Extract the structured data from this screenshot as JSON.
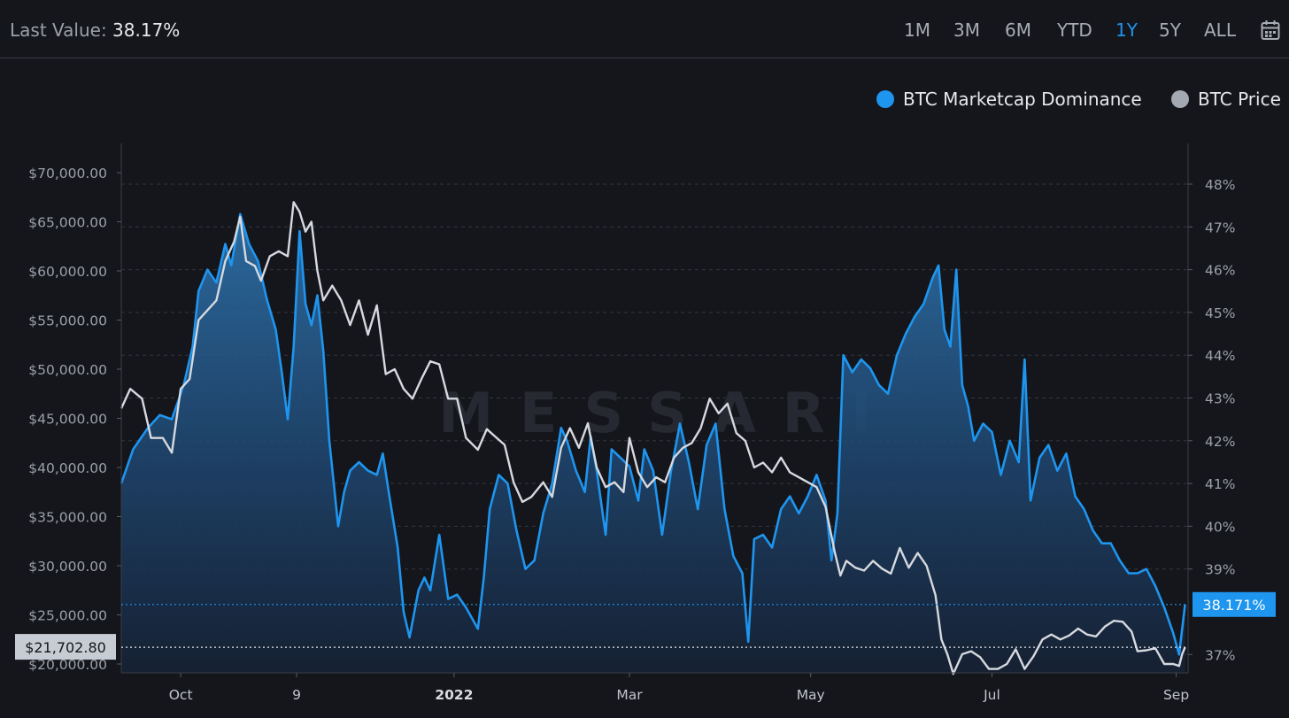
{
  "header": {
    "last_value_label": "Last Value:",
    "last_value": "38.17%",
    "ranges": [
      "1M",
      "3M",
      "6M",
      "YTD",
      "1Y",
      "5Y",
      "ALL"
    ],
    "active_range": "1Y",
    "calendar_icon": "calendar-icon"
  },
  "colors": {
    "dominance": "#1e95ef",
    "price": "#d6d9df",
    "accent": "#1e95ef"
  },
  "watermark": "MESSARI",
  "chart_data": {
    "type": "line",
    "x_ticks": [
      "Oct",
      "9",
      "2022",
      "Mar",
      "May",
      "Jul",
      "Sep"
    ],
    "x_tick_dates": [
      "2021-10-01",
      "2021-11-09",
      "2022-01-01",
      "2022-03-01",
      "2022-05-01",
      "2022-07-01",
      "2022-09-01"
    ],
    "x_range": [
      "2021-09-11",
      "2022-09-05"
    ],
    "left_axis": {
      "ticks": [
        "$70,000.00",
        "$65,000.00",
        "$60,000.00",
        "$55,000.00",
        "$50,000.00",
        "$45,000.00",
        "$40,000.00",
        "$35,000.00",
        "$30,000.00",
        "$25,000.00",
        "$20,000.00"
      ],
      "tick_values": [
        70000,
        65000,
        60000,
        55000,
        50000,
        45000,
        40000,
        35000,
        30000,
        25000,
        20000
      ],
      "range": [
        19000,
        71000
      ]
    },
    "right_axis": {
      "ticks": [
        "48%",
        "47%",
        "46%",
        "45%",
        "44%",
        "43%",
        "42%",
        "41%",
        "40%",
        "39%",
        "37%"
      ],
      "tick_values": [
        48,
        47,
        46,
        45,
        44,
        43,
        42,
        41,
        40,
        39,
        37
      ],
      "range": [
        36.5,
        49
      ]
    },
    "price_marker": "$21,702.80",
    "dominance_marker": "38.171%",
    "grid": true,
    "legend_position": "top-right",
    "series": [
      {
        "name": "BTC Marketcap Dominance",
        "axis": "right",
        "area": true,
        "points": [
          [
            "2021-09-11",
            41.0
          ],
          [
            "2021-09-15",
            41.8
          ],
          [
            "2021-09-20",
            42.3
          ],
          [
            "2021-09-24",
            42.6
          ],
          [
            "2021-09-28",
            42.5
          ],
          [
            "2021-10-02",
            43.3
          ],
          [
            "2021-10-05",
            44.2
          ],
          [
            "2021-10-07",
            45.5
          ],
          [
            "2021-10-10",
            46.0
          ],
          [
            "2021-10-13",
            45.7
          ],
          [
            "2021-10-16",
            46.6
          ],
          [
            "2021-10-18",
            46.1
          ],
          [
            "2021-10-21",
            47.3
          ],
          [
            "2021-10-24",
            46.6
          ],
          [
            "2021-10-27",
            46.2
          ],
          [
            "2021-10-30",
            45.3
          ],
          [
            "2021-11-02",
            44.6
          ],
          [
            "2021-11-04",
            43.6
          ],
          [
            "2021-11-06",
            42.5
          ],
          [
            "2021-11-08",
            44.2
          ],
          [
            "2021-11-10",
            46.9
          ],
          [
            "2021-11-12",
            45.2
          ],
          [
            "2021-11-14",
            44.7
          ],
          [
            "2021-11-16",
            45.4
          ],
          [
            "2021-11-18",
            44.1
          ],
          [
            "2021-11-20",
            42.0
          ],
          [
            "2021-11-23",
            40.0
          ],
          [
            "2021-11-25",
            40.8
          ],
          [
            "2021-11-27",
            41.3
          ],
          [
            "2021-11-30",
            41.5
          ],
          [
            "2021-12-03",
            41.3
          ],
          [
            "2021-12-06",
            41.2
          ],
          [
            "2021-12-08",
            41.7
          ],
          [
            "2021-12-10",
            40.8
          ],
          [
            "2021-12-13",
            39.5
          ],
          [
            "2021-12-15",
            38.0
          ],
          [
            "2021-12-17",
            37.4
          ],
          [
            "2021-12-20",
            38.5
          ],
          [
            "2021-12-22",
            38.8
          ],
          [
            "2021-12-24",
            38.5
          ],
          [
            "2021-12-27",
            39.8
          ],
          [
            "2021-12-30",
            38.3
          ],
          [
            "2022-01-02",
            38.4
          ],
          [
            "2022-01-05",
            38.1
          ],
          [
            "2022-01-09",
            37.6
          ],
          [
            "2022-01-11",
            38.8
          ],
          [
            "2022-01-13",
            40.4
          ],
          [
            "2022-01-16",
            41.2
          ],
          [
            "2022-01-19",
            41.0
          ],
          [
            "2022-01-22",
            39.9
          ],
          [
            "2022-01-25",
            39.0
          ],
          [
            "2022-01-28",
            39.2
          ],
          [
            "2022-01-31",
            40.3
          ],
          [
            "2022-02-03",
            41.0
          ],
          [
            "2022-02-06",
            42.3
          ],
          [
            "2022-02-08",
            42.0
          ],
          [
            "2022-02-11",
            41.3
          ],
          [
            "2022-02-14",
            40.8
          ],
          [
            "2022-02-16",
            42.1
          ],
          [
            "2022-02-18",
            41.3
          ],
          [
            "2022-02-21",
            39.8
          ],
          [
            "2022-02-23",
            41.8
          ],
          [
            "2022-02-26",
            41.6
          ],
          [
            "2022-03-01",
            41.4
          ],
          [
            "2022-03-04",
            40.6
          ],
          [
            "2022-03-06",
            41.8
          ],
          [
            "2022-03-09",
            41.3
          ],
          [
            "2022-03-12",
            39.8
          ],
          [
            "2022-03-15",
            41.3
          ],
          [
            "2022-03-18",
            42.4
          ],
          [
            "2022-03-21",
            41.5
          ],
          [
            "2022-03-24",
            40.4
          ],
          [
            "2022-03-27",
            41.9
          ],
          [
            "2022-03-30",
            42.4
          ],
          [
            "2022-04-02",
            40.4
          ],
          [
            "2022-04-05",
            39.3
          ],
          [
            "2022-04-08",
            38.9
          ],
          [
            "2022-04-10",
            37.3
          ],
          [
            "2022-04-12",
            39.7
          ],
          [
            "2022-04-15",
            39.8
          ],
          [
            "2022-04-18",
            39.5
          ],
          [
            "2022-04-21",
            40.4
          ],
          [
            "2022-04-24",
            40.7
          ],
          [
            "2022-04-27",
            40.3
          ],
          [
            "2022-04-30",
            40.7
          ],
          [
            "2022-05-03",
            41.2
          ],
          [
            "2022-05-06",
            40.6
          ],
          [
            "2022-05-08",
            39.2
          ],
          [
            "2022-05-10",
            40.3
          ],
          [
            "2022-05-12",
            44.0
          ],
          [
            "2022-05-15",
            43.6
          ],
          [
            "2022-05-18",
            43.9
          ],
          [
            "2022-05-21",
            43.7
          ],
          [
            "2022-05-24",
            43.3
          ],
          [
            "2022-05-27",
            43.1
          ],
          [
            "2022-05-30",
            44.0
          ],
          [
            "2022-06-02",
            44.5
          ],
          [
            "2022-06-05",
            44.9
          ],
          [
            "2022-06-08",
            45.2
          ],
          [
            "2022-06-11",
            45.8
          ],
          [
            "2022-06-13",
            46.1
          ],
          [
            "2022-06-15",
            44.6
          ],
          [
            "2022-06-17",
            44.2
          ],
          [
            "2022-06-19",
            46.0
          ],
          [
            "2022-06-21",
            43.3
          ],
          [
            "2022-06-23",
            42.8
          ],
          [
            "2022-06-25",
            42.0
          ],
          [
            "2022-06-28",
            42.4
          ],
          [
            "2022-07-01",
            42.2
          ],
          [
            "2022-07-04",
            41.2
          ],
          [
            "2022-07-07",
            42.0
          ],
          [
            "2022-07-10",
            41.5
          ],
          [
            "2022-07-12",
            43.9
          ],
          [
            "2022-07-14",
            40.6
          ],
          [
            "2022-07-17",
            41.6
          ],
          [
            "2022-07-20",
            41.9
          ],
          [
            "2022-07-23",
            41.3
          ],
          [
            "2022-07-26",
            41.7
          ],
          [
            "2022-07-29",
            40.7
          ],
          [
            "2022-08-01",
            40.4
          ],
          [
            "2022-08-04",
            39.9
          ],
          [
            "2022-08-07",
            39.6
          ],
          [
            "2022-08-10",
            39.6
          ],
          [
            "2022-08-13",
            39.2
          ],
          [
            "2022-08-16",
            38.9
          ],
          [
            "2022-08-19",
            38.9
          ],
          [
            "2022-08-22",
            39.0
          ],
          [
            "2022-08-25",
            38.6
          ],
          [
            "2022-08-28",
            38.1
          ],
          [
            "2022-08-31",
            37.5
          ],
          [
            "2022-09-02",
            37.0
          ],
          [
            "2022-09-04",
            38.17
          ]
        ]
      },
      {
        "name": "BTC Price",
        "axis": "left",
        "area": false,
        "points": [
          [
            "2021-09-11",
            46000
          ],
          [
            "2021-09-14",
            48000
          ],
          [
            "2021-09-18",
            47000
          ],
          [
            "2021-09-21",
            43000
          ],
          [
            "2021-09-25",
            43000
          ],
          [
            "2021-09-28",
            41500
          ],
          [
            "2021-10-01",
            48000
          ],
          [
            "2021-10-04",
            49000
          ],
          [
            "2021-10-07",
            55000
          ],
          [
            "2021-10-10",
            56000
          ],
          [
            "2021-10-13",
            57000
          ],
          [
            "2021-10-16",
            61000
          ],
          [
            "2021-10-19",
            63000
          ],
          [
            "2021-10-21",
            65500
          ],
          [
            "2021-10-23",
            61000
          ],
          [
            "2021-10-26",
            60500
          ],
          [
            "2021-10-28",
            59000
          ],
          [
            "2021-10-31",
            61500
          ],
          [
            "2021-11-03",
            62000
          ],
          [
            "2021-11-06",
            61500
          ],
          [
            "2021-11-08",
            67000
          ],
          [
            "2021-11-10",
            66000
          ],
          [
            "2021-11-12",
            64000
          ],
          [
            "2021-11-14",
            65000
          ],
          [
            "2021-11-16",
            60000
          ],
          [
            "2021-11-18",
            57000
          ],
          [
            "2021-11-21",
            58500
          ],
          [
            "2021-11-24",
            57000
          ],
          [
            "2021-11-27",
            54500
          ],
          [
            "2021-11-30",
            57000
          ],
          [
            "2021-12-03",
            53500
          ],
          [
            "2021-12-06",
            56500
          ],
          [
            "2021-12-09",
            49500
          ],
          [
            "2021-12-12",
            50000
          ],
          [
            "2021-12-15",
            48000
          ],
          [
            "2021-12-18",
            47000
          ],
          [
            "2021-12-21",
            49000
          ],
          [
            "2021-12-24",
            50800
          ],
          [
            "2021-12-27",
            50500
          ],
          [
            "2021-12-30",
            47000
          ],
          [
            "2022-01-02",
            47000
          ],
          [
            "2022-01-05",
            43000
          ],
          [
            "2022-01-09",
            41800
          ],
          [
            "2022-01-12",
            43900
          ],
          [
            "2022-01-15",
            43100
          ],
          [
            "2022-01-18",
            42300
          ],
          [
            "2022-01-21",
            38500
          ],
          [
            "2022-01-24",
            36500
          ],
          [
            "2022-01-27",
            37000
          ],
          [
            "2022-01-31",
            38500
          ],
          [
            "2022-02-03",
            37000
          ],
          [
            "2022-02-06",
            42000
          ],
          [
            "2022-02-09",
            44000
          ],
          [
            "2022-02-12",
            42000
          ],
          [
            "2022-02-15",
            44500
          ],
          [
            "2022-02-18",
            40000
          ],
          [
            "2022-02-21",
            38000
          ],
          [
            "2022-02-24",
            38500
          ],
          [
            "2022-02-27",
            37500
          ],
          [
            "2022-03-01",
            43000
          ],
          [
            "2022-03-04",
            39500
          ],
          [
            "2022-03-07",
            38000
          ],
          [
            "2022-03-10",
            39000
          ],
          [
            "2022-03-13",
            38500
          ],
          [
            "2022-03-16",
            41000
          ],
          [
            "2022-03-19",
            42000
          ],
          [
            "2022-03-22",
            42500
          ],
          [
            "2022-03-25",
            44000
          ],
          [
            "2022-03-28",
            47000
          ],
          [
            "2022-03-31",
            45500
          ],
          [
            "2022-04-03",
            46500
          ],
          [
            "2022-04-06",
            43500
          ],
          [
            "2022-04-09",
            42700
          ],
          [
            "2022-04-12",
            40000
          ],
          [
            "2022-04-15",
            40500
          ],
          [
            "2022-04-18",
            39500
          ],
          [
            "2022-04-21",
            41000
          ],
          [
            "2022-04-24",
            39500
          ],
          [
            "2022-04-27",
            39000
          ],
          [
            "2022-04-30",
            38500
          ],
          [
            "2022-05-03",
            38000
          ],
          [
            "2022-05-06",
            36000
          ],
          [
            "2022-05-09",
            31500
          ],
          [
            "2022-05-11",
            29000
          ],
          [
            "2022-05-13",
            30500
          ],
          [
            "2022-05-16",
            29800
          ],
          [
            "2022-05-19",
            29500
          ],
          [
            "2022-05-22",
            30500
          ],
          [
            "2022-05-25",
            29700
          ],
          [
            "2022-05-28",
            29200
          ],
          [
            "2022-05-31",
            31800
          ],
          [
            "2022-06-03",
            29800
          ],
          [
            "2022-06-06",
            31300
          ],
          [
            "2022-06-09",
            30000
          ],
          [
            "2022-06-12",
            27000
          ],
          [
            "2022-06-14",
            22500
          ],
          [
            "2022-06-16",
            21000
          ],
          [
            "2022-06-18",
            19000
          ],
          [
            "2022-06-21",
            21000
          ],
          [
            "2022-06-24",
            21300
          ],
          [
            "2022-06-27",
            20700
          ],
          [
            "2022-06-30",
            19500
          ],
          [
            "2022-07-03",
            19500
          ],
          [
            "2022-07-06",
            20000
          ],
          [
            "2022-07-09",
            21500
          ],
          [
            "2022-07-12",
            19500
          ],
          [
            "2022-07-15",
            20800
          ],
          [
            "2022-07-18",
            22500
          ],
          [
            "2022-07-21",
            23000
          ],
          [
            "2022-07-24",
            22500
          ],
          [
            "2022-07-27",
            22900
          ],
          [
            "2022-07-30",
            23600
          ],
          [
            "2022-08-02",
            23000
          ],
          [
            "2022-08-05",
            22800
          ],
          [
            "2022-08-08",
            23800
          ],
          [
            "2022-08-11",
            24400
          ],
          [
            "2022-08-14",
            24300
          ],
          [
            "2022-08-17",
            23300
          ],
          [
            "2022-08-19",
            21300
          ],
          [
            "2022-08-22",
            21400
          ],
          [
            "2022-08-25",
            21600
          ],
          [
            "2022-08-28",
            20000
          ],
          [
            "2022-08-31",
            20000
          ],
          [
            "2022-09-02",
            19800
          ],
          [
            "2022-09-03",
            21000
          ],
          [
            "2022-09-04",
            21702.8
          ]
        ]
      }
    ]
  }
}
